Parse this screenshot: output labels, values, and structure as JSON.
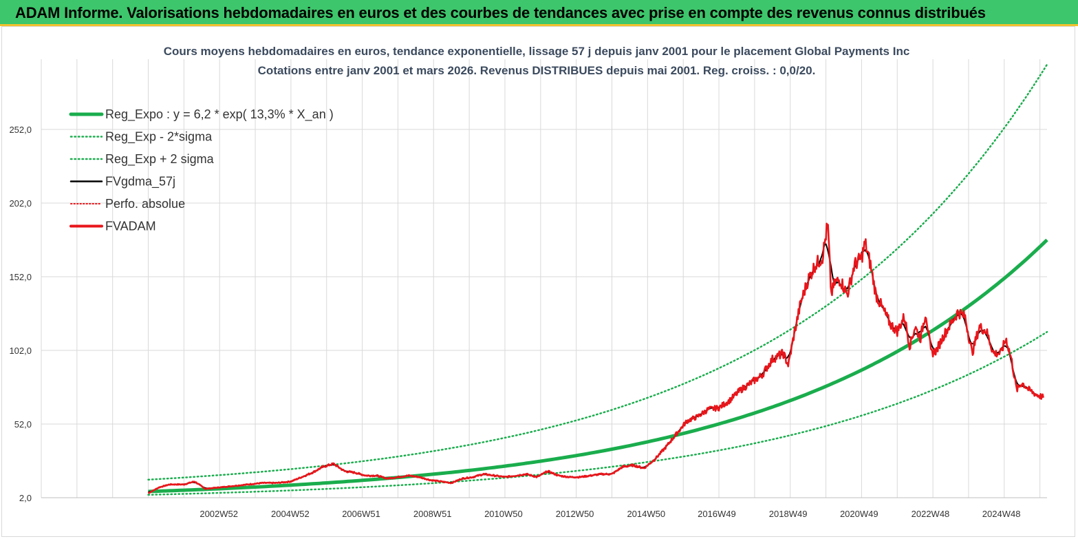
{
  "banner": {
    "title": "ADAM Informe. Valorisations hebdomadaires en euros et des courbes de tendances avec prise en compte des revenus connus distribués"
  },
  "colors": {
    "banner_bg": "#3dc66b",
    "banner_border": "#f2c12e",
    "regression": "#1aad4d",
    "fvadam": "#e8161b",
    "smoothed": "#000000",
    "grid": "#d9d9d9"
  },
  "chart_data": {
    "type": "line",
    "title": [
      "Cours moyens hebdomadaires en euros, tendance exponentielle, lissage 57 j depuis janv 2001 pour le placement Global Payments Inc",
      "Cotations entre janv 2001 et mars 2026. Revenus DISTRIBUES depuis mai 2001. Reg. croiss. : 0,0/20."
    ],
    "xlabel": "",
    "ylabel": "",
    "x_range": [
      1998.0,
      2026.2
    ],
    "ylim": [
      2,
      290
    ],
    "y_ticks": [
      2,
      52,
      102,
      152,
      202,
      252
    ],
    "y_tick_labels": [
      "2,0",
      "52,0",
      "102,0",
      "152,0",
      "202,0",
      "252,0"
    ],
    "x_ticks": [
      2002.98,
      2004.98,
      2006.97,
      2008.97,
      2010.96,
      2012.96,
      2014.96,
      2016.94,
      2018.94,
      2020.93,
      2022.93,
      2024.92
    ],
    "x_tick_labels": [
      "2002W52",
      "2004W52",
      "2006W51",
      "2008W51",
      "2010W50",
      "2012W50",
      "2014W50",
      "2016W49",
      "2018W49",
      "2020W49",
      "2022W48",
      "2024W48"
    ],
    "grid": true,
    "legend_position": "top-left",
    "regression": {
      "a": 6.2,
      "rate": 0.133,
      "start_year": 2001.0,
      "sigma_factor_low": 0.64,
      "sigma_factor_high": 1.65
    },
    "series": [
      {
        "name": "Reg_Expo : y = 6,2 * exp( 13,3% *  X_an )",
        "style": "thick-solid",
        "color": "#1aad4d"
      },
      {
        "name": "Reg_Exp - 2*sigma",
        "style": "dotted",
        "color": "#1aad4d"
      },
      {
        "name": "Reg_Exp + 2 sigma",
        "style": "dotted",
        "color": "#1aad4d"
      },
      {
        "name": "FVgdma_57j",
        "style": "solid",
        "color": "#000000"
      },
      {
        "name": "Perfo. absolue",
        "style": "dotted",
        "color": "#e8161b"
      },
      {
        "name": "FVADAM",
        "style": "thick-solid",
        "color": "#e8161b",
        "x": [
          2001.0,
          2001.3,
          2001.6,
          2002.0,
          2002.3,
          2002.6,
          2003.0,
          2003.4,
          2003.8,
          2004.2,
          2004.6,
          2005.0,
          2005.3,
          2005.6,
          2005.9,
          2006.2,
          2006.5,
          2006.8,
          2007.1,
          2007.4,
          2007.7,
          2008.0,
          2008.3,
          2008.6,
          2008.9,
          2009.2,
          2009.5,
          2009.8,
          2010.1,
          2010.4,
          2010.7,
          2011.0,
          2011.3,
          2011.6,
          2011.9,
          2012.2,
          2012.5,
          2012.8,
          2013.1,
          2013.4,
          2013.7,
          2014.0,
          2014.3,
          2014.6,
          2014.9,
          2015.2,
          2015.5,
          2015.8,
          2016.1,
          2016.4,
          2016.7,
          2017.0,
          2017.3,
          2017.6,
          2017.9,
          2018.2,
          2018.5,
          2018.8,
          2018.95,
          2019.1,
          2019.3,
          2019.5,
          2019.7,
          2019.9,
          2020.05,
          2020.15,
          2020.25,
          2020.4,
          2020.6,
          2020.8,
          2021.0,
          2021.1,
          2021.25,
          2021.4,
          2021.6,
          2021.8,
          2022.0,
          2022.2,
          2022.35,
          2022.5,
          2022.65,
          2022.8,
          2022.95,
          2023.1,
          2023.3,
          2023.5,
          2023.7,
          2023.9,
          2024.1,
          2024.3,
          2024.5,
          2024.7,
          2024.9,
          2025.05,
          2025.2,
          2025.35,
          2025.5,
          2025.7,
          2025.9,
          2026.1
        ],
        "values": [
          5,
          9,
          11,
          11,
          13,
          8,
          9,
          10,
          11,
          12,
          12,
          13,
          16,
          19,
          23,
          25,
          20,
          19,
          17,
          17,
          15,
          16,
          17,
          16,
          14,
          13,
          12,
          15,
          16,
          18,
          17,
          16,
          17,
          18,
          16,
          20,
          17,
          16,
          16,
          17,
          18,
          18,
          23,
          24,
          22,
          28,
          36,
          45,
          54,
          57,
          62,
          63,
          68,
          75,
          80,
          85,
          96,
          100,
          92,
          112,
          135,
          150,
          160,
          165,
          188,
          140,
          148,
          150,
          140,
          160,
          165,
          175,
          160,
          140,
          130,
          120,
          115,
          125,
          105,
          118,
          110,
          128,
          100,
          102,
          112,
          120,
          128,
          125,
          100,
          118,
          115,
          100,
          100,
          110,
          96,
          75,
          80,
          75,
          72,
          70
        ]
      }
    ]
  },
  "legend": [
    "Reg_Expo : y = 6,2 * exp( 13,3% *  X_an )",
    "Reg_Exp - 2*sigma",
    "Reg_Exp + 2 sigma",
    "FVgdma_57j",
    "Perfo. absolue",
    "FVADAM"
  ]
}
